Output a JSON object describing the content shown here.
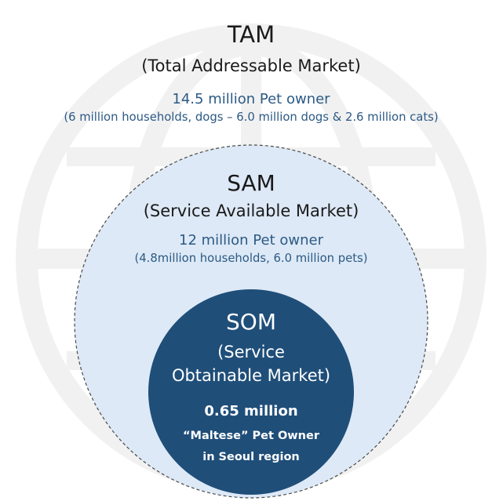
{
  "tam": {
    "title": "TAM",
    "subtitle": "(Total Addressable Market)",
    "count": "14.5 million Pet owner",
    "detail": "(6 million households, dogs – 6.0 million dogs & 2.6 million cats)"
  },
  "sam": {
    "title": "SAM",
    "subtitle": "(Service Available Market)",
    "count": "12 million Pet owner",
    "detail": "(4.8million households, 6.0 million pets)"
  },
  "som": {
    "title": "SOM",
    "subtitle_lines": [
      "(Service",
      "Obtainable Market)"
    ],
    "count": "0.65 million",
    "detail_lines": [
      "“Maltese” Pet Owner",
      "in Seoul region"
    ]
  }
}
